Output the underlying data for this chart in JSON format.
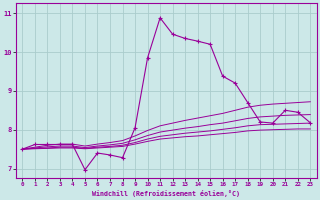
{
  "xlabel": "Windchill (Refroidissement éolien,°C)",
  "bg_color": "#cce8e8",
  "grid_color": "#aacccc",
  "line_color": "#990099",
  "xlim": [
    -0.5,
    23.5
  ],
  "ylim": [
    6.75,
    11.25
  ],
  "xticks": [
    0,
    1,
    2,
    3,
    4,
    5,
    6,
    7,
    8,
    9,
    10,
    11,
    12,
    13,
    14,
    15,
    16,
    17,
    18,
    19,
    20,
    21,
    22,
    23
  ],
  "yticks": [
    7,
    8,
    9,
    10,
    11
  ],
  "main_data_x": [
    0,
    1,
    2,
    3,
    4,
    5,
    6,
    7,
    8,
    9,
    10,
    11,
    12,
    13,
    14,
    15,
    16,
    17,
    18,
    19,
    20,
    21,
    22,
    23
  ],
  "main_data_y": [
    7.5,
    7.62,
    7.62,
    7.62,
    7.62,
    6.97,
    7.4,
    7.35,
    7.28,
    8.05,
    9.85,
    10.88,
    10.46,
    10.35,
    10.28,
    10.2,
    9.38,
    9.2,
    8.7,
    8.2,
    8.17,
    8.5,
    8.45,
    8.18
  ],
  "curve1_x": [
    0,
    1,
    2,
    3,
    4,
    5,
    6,
    7,
    8,
    9,
    10,
    11,
    12,
    13,
    14,
    15,
    16,
    17,
    18,
    19,
    20,
    21,
    22,
    23
  ],
  "curve1_y": [
    7.5,
    7.55,
    7.6,
    7.63,
    7.63,
    7.58,
    7.63,
    7.67,
    7.72,
    7.84,
    7.98,
    8.1,
    8.17,
    8.24,
    8.3,
    8.36,
    8.42,
    8.5,
    8.58,
    8.63,
    8.66,
    8.68,
    8.7,
    8.72
  ],
  "curve2_x": [
    0,
    1,
    2,
    3,
    4,
    5,
    6,
    7,
    8,
    9,
    10,
    11,
    12,
    13,
    14,
    15,
    16,
    17,
    18,
    19,
    20,
    21,
    22,
    23
  ],
  "curve2_y": [
    7.5,
    7.53,
    7.56,
    7.58,
    7.58,
    7.54,
    7.58,
    7.61,
    7.65,
    7.74,
    7.85,
    7.94,
    7.99,
    8.04,
    8.08,
    8.13,
    8.17,
    8.23,
    8.29,
    8.33,
    8.35,
    8.37,
    8.38,
    8.39
  ],
  "curve3_x": [
    0,
    1,
    2,
    3,
    4,
    5,
    6,
    7,
    8,
    9,
    10,
    11,
    12,
    13,
    14,
    15,
    16,
    17,
    18,
    19,
    20,
    21,
    22,
    23
  ],
  "curve3_y": [
    7.5,
    7.52,
    7.53,
    7.55,
    7.55,
    7.52,
    7.55,
    7.57,
    7.6,
    7.67,
    7.76,
    7.83,
    7.87,
    7.91,
    7.94,
    7.97,
    8.01,
    8.05,
    8.1,
    8.13,
    8.14,
    8.15,
    8.16,
    8.17
  ],
  "curve4_x": [
    0,
    1,
    2,
    3,
    4,
    5,
    6,
    7,
    8,
    9,
    10,
    11,
    12,
    13,
    14,
    15,
    16,
    17,
    18,
    19,
    20,
    21,
    22,
    23
  ],
  "curve4_y": [
    7.5,
    7.51,
    7.52,
    7.53,
    7.53,
    7.51,
    7.53,
    7.55,
    7.57,
    7.63,
    7.7,
    7.76,
    7.79,
    7.82,
    7.84,
    7.87,
    7.9,
    7.93,
    7.97,
    7.99,
    8.0,
    8.01,
    8.02,
    8.02
  ]
}
